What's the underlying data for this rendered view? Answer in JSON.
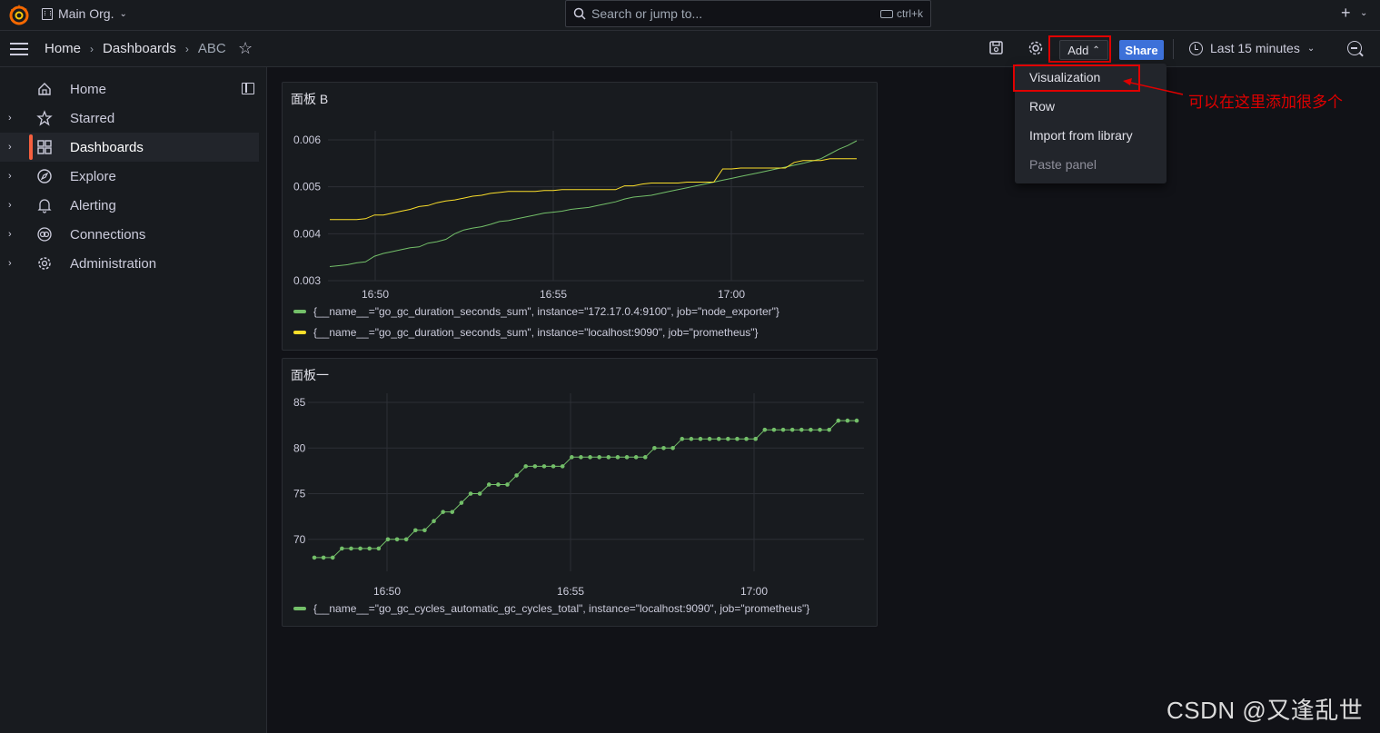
{
  "topbar": {
    "org_name": "Main Org.",
    "search_placeholder": "Search or jump to...",
    "search_shortcut": "ctrl+k"
  },
  "breadcrumb": [
    "Home",
    "Dashboards",
    "ABC"
  ],
  "toolbar": {
    "add_label": "Add",
    "share_label": "Share",
    "time_range": "Last 15 minutes"
  },
  "sidebar": {
    "items": [
      {
        "label": "Home",
        "icon": "home-icon",
        "expandable": false
      },
      {
        "label": "Starred",
        "icon": "star-icon",
        "expandable": true
      },
      {
        "label": "Dashboards",
        "icon": "apps-icon",
        "expandable": true,
        "active": true
      },
      {
        "label": "Explore",
        "icon": "compass-icon",
        "expandable": true
      },
      {
        "label": "Alerting",
        "icon": "bell-icon",
        "expandable": true
      },
      {
        "label": "Connections",
        "icon": "link-icon",
        "expandable": true
      },
      {
        "label": "Administration",
        "icon": "cog-icon",
        "expandable": true
      }
    ]
  },
  "add_menu": {
    "items": [
      {
        "label": "Visualization",
        "disabled": false
      },
      {
        "label": "Row",
        "disabled": false
      },
      {
        "label": "Import from library",
        "disabled": false
      },
      {
        "label": "Paste panel",
        "disabled": true
      }
    ]
  },
  "annotation": "可以在这里添加很多个",
  "watermark": "CSDN @又逢乱世",
  "colors": {
    "green": "#73bf69",
    "yellow": "#fade2a",
    "accent": "#f55f3e",
    "share": "#3d71d9",
    "highlight": "#e00000"
  },
  "panels": [
    {
      "title": "面板 B",
      "chart_data": {
        "type": "line",
        "x_ticks": [
          "16:50",
          "16:55",
          "17:00"
        ],
        "y_ticks": [
          "0.006",
          "0.005",
          "0.004",
          "0.003"
        ],
        "ylim": [
          0.003,
          0.006
        ],
        "series": [
          {
            "name": "{__name__=\"go_gc_duration_seconds_sum\", instance=\"172.17.0.4:9100\", job=\"node_exporter\"}",
            "color": "#73bf69",
            "x": [
              0,
              1,
              2,
              3,
              4,
              5,
              6,
              7,
              8,
              9,
              10,
              11,
              12,
              13,
              14,
              15,
              16,
              17,
              18,
              19,
              20,
              21,
              22,
              23,
              24,
              25,
              26,
              27,
              28,
              29,
              30,
              31,
              32,
              33,
              34,
              35,
              36,
              37,
              38,
              39,
              40,
              41,
              42,
              43,
              44,
              45,
              46,
              47,
              48,
              49,
              50,
              51,
              52,
              53,
              54,
              55,
              56,
              57,
              58,
              59
            ],
            "y": [
              0.0033,
              0.00332,
              0.00334,
              0.00338,
              0.0034,
              0.00352,
              0.00358,
              0.00362,
              0.00366,
              0.0037,
              0.00372,
              0.0038,
              0.00383,
              0.00388,
              0.004,
              0.00408,
              0.00412,
              0.00415,
              0.0042,
              0.00426,
              0.00428,
              0.00432,
              0.00436,
              0.0044,
              0.00444,
              0.00446,
              0.00448,
              0.00452,
              0.00454,
              0.00456,
              0.0046,
              0.00464,
              0.00468,
              0.00474,
              0.00478,
              0.0048,
              0.00482,
              0.00486,
              0.0049,
              0.00494,
              0.00498,
              0.00502,
              0.00506,
              0.0051,
              0.00514,
              0.00518,
              0.00522,
              0.00526,
              0.0053,
              0.00534,
              0.00538,
              0.00542,
              0.00546,
              0.0055,
              0.00555,
              0.0056,
              0.0057,
              0.0058,
              0.00588,
              0.00598
            ]
          },
          {
            "name": "{__name__=\"go_gc_duration_seconds_sum\", instance=\"localhost:9090\", job=\"prometheus\"}",
            "color": "#fade2a",
            "x": [
              0,
              1,
              2,
              3,
              4,
              5,
              6,
              7,
              8,
              9,
              10,
              11,
              12,
              13,
              14,
              15,
              16,
              17,
              18,
              19,
              20,
              21,
              22,
              23,
              24,
              25,
              26,
              27,
              28,
              29,
              30,
              31,
              32,
              33,
              34,
              35,
              36,
              37,
              38,
              39,
              40,
              41,
              42,
              43,
              44,
              45,
              46,
              47,
              48,
              49,
              50,
              51,
              52,
              53,
              54,
              55,
              56,
              57,
              58,
              59
            ],
            "y": [
              0.0043,
              0.0043,
              0.0043,
              0.0043,
              0.00432,
              0.0044,
              0.0044,
              0.00444,
              0.00448,
              0.00452,
              0.00458,
              0.0046,
              0.00466,
              0.0047,
              0.00472,
              0.00476,
              0.0048,
              0.00482,
              0.00486,
              0.00488,
              0.0049,
              0.0049,
              0.0049,
              0.0049,
              0.00492,
              0.00492,
              0.00494,
              0.00494,
              0.00494,
              0.00494,
              0.00494,
              0.00494,
              0.00494,
              0.00502,
              0.00502,
              0.00506,
              0.00508,
              0.00508,
              0.00508,
              0.00508,
              0.0051,
              0.0051,
              0.0051,
              0.0051,
              0.00538,
              0.00538,
              0.0054,
              0.0054,
              0.0054,
              0.0054,
              0.0054,
              0.0054,
              0.00552,
              0.00556,
              0.00556,
              0.00556,
              0.0056,
              0.0056,
              0.0056,
              0.0056
            ]
          }
        ]
      }
    },
    {
      "title": "面板一",
      "chart_data": {
        "type": "line",
        "x_ticks": [
          "16:50",
          "16:55",
          "17:00"
        ],
        "y_ticks": [
          "85",
          "80",
          "75",
          "70"
        ],
        "ylim": [
          66.5,
          85
        ],
        "series": [
          {
            "name": "{__name__=\"go_gc_cycles_automatic_gc_cycles_total\", instance=\"localhost:9090\", job=\"prometheus\"}",
            "color": "#73bf69",
            "points": true,
            "x": [
              0,
              1,
              2,
              3,
              4,
              5,
              6,
              7,
              8,
              9,
              10,
              11,
              12,
              13,
              14,
              15,
              16,
              17,
              18,
              19,
              20,
              21,
              22,
              23,
              24,
              25,
              26,
              27,
              28,
              29,
              30,
              31,
              32,
              33,
              34,
              35,
              36,
              37,
              38,
              39,
              40,
              41,
              42,
              43,
              44,
              45,
              46,
              47,
              48,
              49,
              50,
              51,
              52,
              53,
              54,
              55,
              56,
              57,
              58,
              59
            ],
            "y": [
              68,
              68,
              68,
              69,
              69,
              69,
              69,
              69,
              70,
              70,
              70,
              71,
              71,
              72,
              73,
              73,
              74,
              75,
              75,
              76,
              76,
              76,
              77,
              78,
              78,
              78,
              78,
              78,
              79,
              79,
              79,
              79,
              79,
              79,
              79,
              79,
              79,
              80,
              80,
              80,
              81,
              81,
              81,
              81,
              81,
              81,
              81,
              81,
              81,
              82,
              82,
              82,
              82,
              82,
              82,
              82,
              82,
              83,
              83,
              83
            ]
          }
        ]
      }
    }
  ]
}
